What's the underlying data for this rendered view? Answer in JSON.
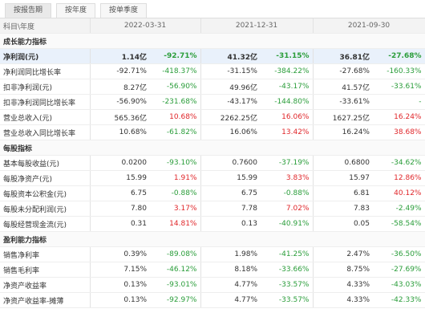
{
  "tabs": [
    "按报告期",
    "按年度",
    "按单季度"
  ],
  "header": [
    "科目\\年度",
    "2022-03-31",
    "2021-12-31",
    "2021-09-30"
  ],
  "sections": [
    {
      "title": "成长能力指标",
      "rows": [
        [
          "净利润(元)",
          "1.14亿",
          "-92.71%",
          "41.32亿",
          "-31.15%",
          "36.81亿",
          "-27.68%"
        ],
        [
          "净利润同比增长率",
          "-92.71%",
          "-418.37%",
          "-31.15%",
          "-384.22%",
          "-27.68%",
          "-160.33%"
        ],
        [
          "扣非净利润(元)",
          "8.27亿",
          "-56.90%",
          "49.96亿",
          "-43.17%",
          "41.57亿",
          "-33.61%"
        ],
        [
          "扣非净利润同比增长率",
          "-56.90%",
          "-231.68%",
          "-43.17%",
          "-144.80%",
          "-33.61%",
          "-"
        ],
        [
          "营业总收入(元)",
          "565.36亿",
          "10.68%",
          "2262.25亿",
          "16.06%",
          "1627.25亿",
          "16.24%"
        ],
        [
          "营业总收入同比增长率",
          "10.68%",
          "-61.82%",
          "16.06%",
          "13.42%",
          "16.24%",
          "38.68%"
        ]
      ]
    },
    {
      "title": "每股指标",
      "rows": [
        [
          "基本每股收益(元)",
          "0.0200",
          "-93.10%",
          "0.7600",
          "-37.19%",
          "0.6800",
          "-34.62%"
        ],
        [
          "每股净资产(元)",
          "15.99",
          "1.91%",
          "15.99",
          "3.83%",
          "15.97",
          "12.86%"
        ],
        [
          "每股资本公积金(元)",
          "6.75",
          "-0.88%",
          "6.75",
          "-0.88%",
          "6.81",
          "40.12%"
        ],
        [
          "每股未分配利润(元)",
          "7.80",
          "3.17%",
          "7.78",
          "7.02%",
          "7.83",
          "-2.49%"
        ],
        [
          "每股经营现金流(元)",
          "0.31",
          "14.81%",
          "0.13",
          "-40.91%",
          "0.05",
          "-58.54%"
        ]
      ]
    },
    {
      "title": "盈利能力指标",
      "rows": [
        [
          "销售净利率",
          "0.39%",
          "-89.08%",
          "1.98%",
          "-41.25%",
          "2.47%",
          "-36.50%"
        ],
        [
          "销售毛利率",
          "7.15%",
          "-46.12%",
          "8.18%",
          "-33.66%",
          "8.75%",
          "-27.69%"
        ],
        [
          "净资产收益率",
          "0.13%",
          "-93.01%",
          "4.77%",
          "-33.57%",
          "4.33%",
          "-43.03%"
        ],
        [
          "净资产收益率-摊薄",
          "0.13%",
          "-92.97%",
          "4.77%",
          "-33.57%",
          "4.33%",
          "-42.33%"
        ]
      ]
    }
  ]
}
